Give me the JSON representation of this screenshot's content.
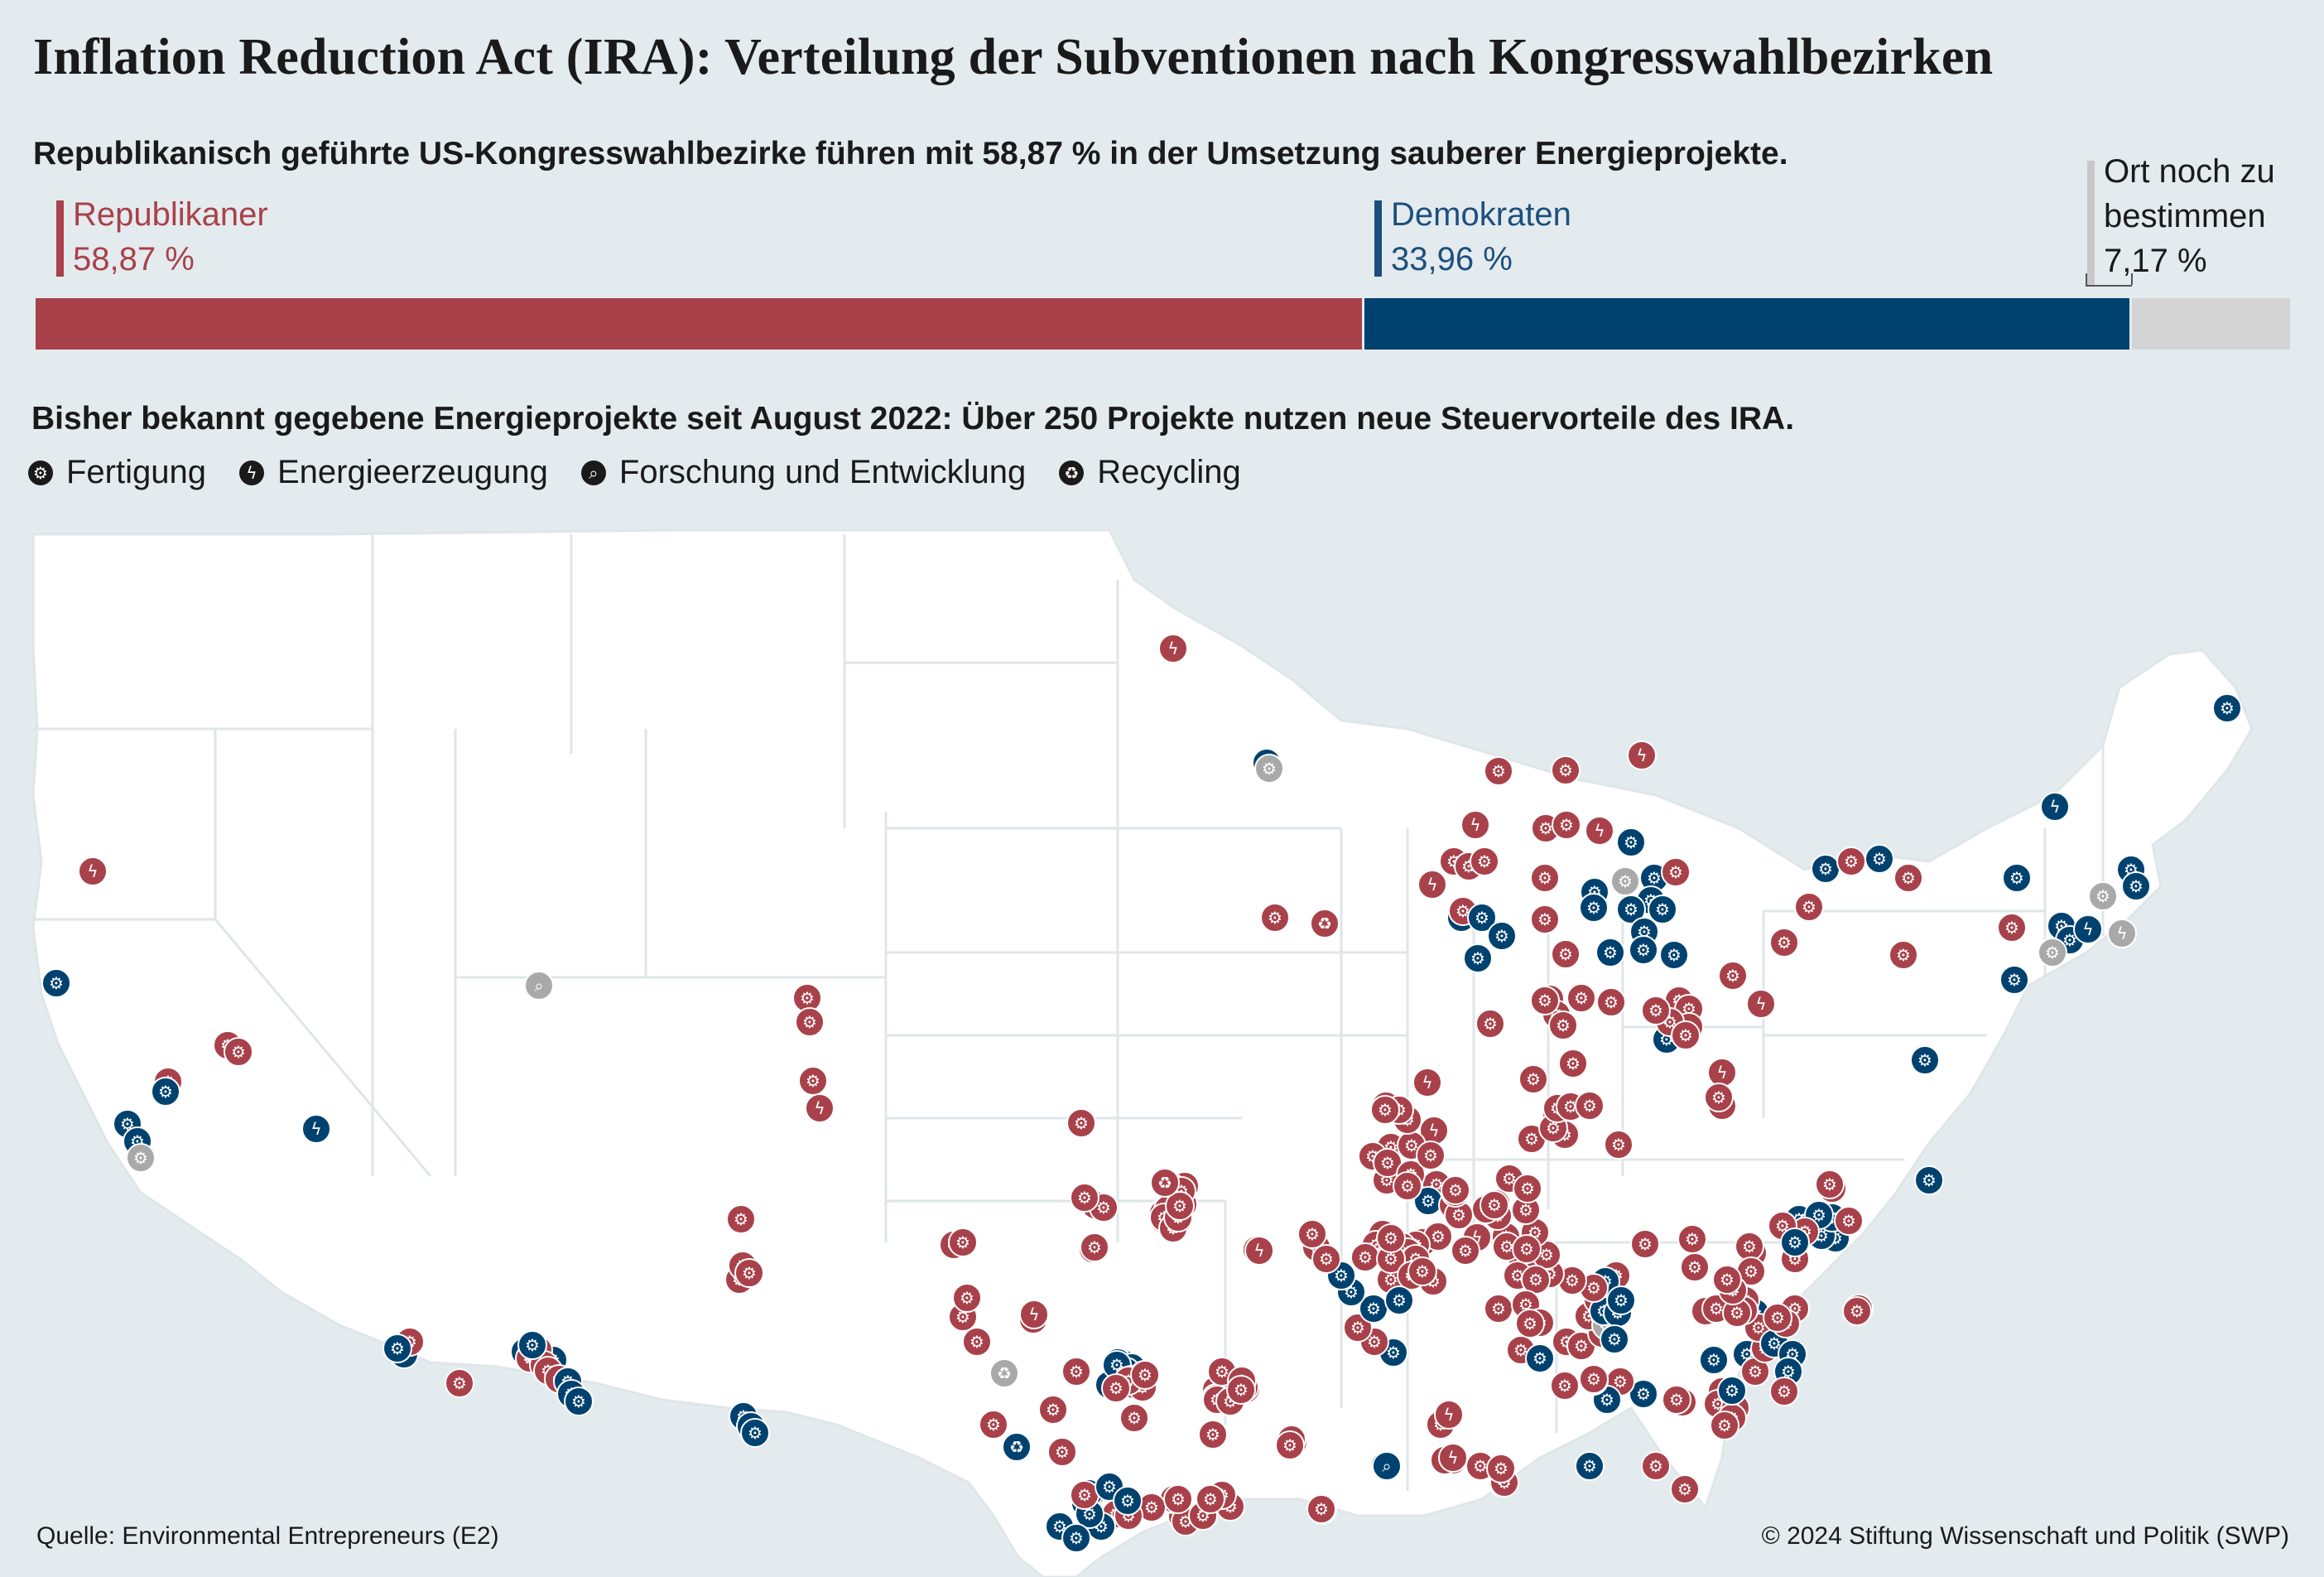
{
  "title": "Inflation Reduction Act (IRA): Verteilung der Subventionen nach Kongresswahlbezirken",
  "subtitle": "Republikanisch geführte US-Kongresswahlbezirke führen mit 58,87 % in der Umsetzung sauberer Energieprojekte.",
  "distribution": {
    "republicans": {
      "label": "Republikaner",
      "value_text": "58,87 %",
      "share": 58.87,
      "color": "#a8414a"
    },
    "democrats": {
      "label": "Demokraten",
      "value_text": "33,96 %",
      "share": 33.96,
      "color": "#00426f"
    },
    "tbd": {
      "label_line1": "Ort noch zu",
      "label_line2": "bestimmen",
      "value_text": "7,17 %",
      "share": 7.17,
      "color": "#d4d4d4"
    }
  },
  "section_title": "Bisher bekannt gegebene Energieprojekte seit August 2022: Über 250 Projekte nutzen neue Steuervorteile des IRA.",
  "legend": [
    {
      "icon": "gears-icon",
      "label": "Fertigung"
    },
    {
      "icon": "lightning-icon",
      "label": "Energieerzeugung"
    },
    {
      "icon": "magnifier-icon",
      "label": "Forschung und Entwicklung"
    },
    {
      "icon": "recycle-icon",
      "label": "Recycling"
    }
  ],
  "source": "Quelle: Environmental Entrepreneurs (E2)",
  "copyright": "© 2024 Stiftung Wissenschaft und Politik (SWP)",
  "colors": {
    "rep": "#a8414a",
    "dem": "#00426f",
    "tbd": "#a9a9a9",
    "land": "#ffffff",
    "water": "#e4ebee"
  }
}
